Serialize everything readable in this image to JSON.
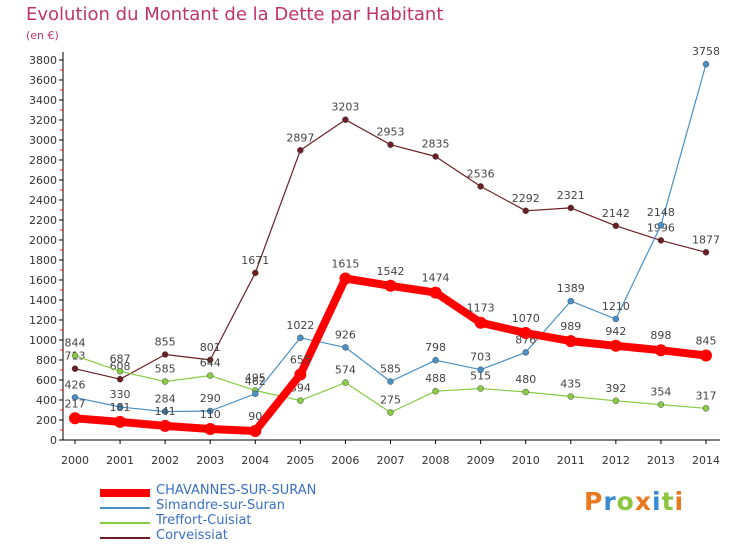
{
  "chart_data": {
    "type": "line",
    "title": "Evolution du Montant de la Dette par Habitant",
    "subtitle": "(en €)",
    "x": [
      "2000",
      "2001",
      "2002",
      "2003",
      "2004",
      "2005",
      "2006",
      "2007",
      "2008",
      "2009",
      "2010",
      "2011",
      "2012",
      "2013",
      "2014"
    ],
    "ylim": [
      0,
      3800
    ],
    "yticks": [
      0,
      200,
      400,
      600,
      800,
      1000,
      1200,
      1400,
      1600,
      1800,
      2000,
      2200,
      2400,
      2600,
      2800,
      3000,
      3200,
      3400,
      3600,
      3800
    ],
    "grid": false,
    "legend_position": "bottom-left",
    "series": [
      {
        "name": "CHAVANNES-SUR-SURAN",
        "color": "#ff0000",
        "values": [
          217,
          181,
          141,
          110,
          90,
          655,
          1615,
          1542,
          1474,
          1173,
          1070,
          989,
          942,
          898,
          845
        ]
      },
      {
        "name": "Simandre-sur-Suran",
        "color": "#4a90c8",
        "values": [
          426,
          330,
          284,
          290,
          462,
          1022,
          926,
          585,
          798,
          703,
          876,
          1389,
          1210,
          2148,
          3758
        ]
      },
      {
        "name": "Treffort-Cuisiat",
        "color": "#88cc44",
        "values": [
          844,
          687,
          585,
          644,
          495,
          394,
          574,
          275,
          488,
          515,
          480,
          435,
          392,
          354,
          317
        ]
      },
      {
        "name": "Corveissiat",
        "color": "#6b1f24",
        "values": [
          713,
          608,
          855,
          801,
          1671,
          2897,
          3203,
          2953,
          2835,
          2536,
          2292,
          2321,
          2142,
          1996,
          1877
        ]
      }
    ]
  },
  "logo": {
    "text": "Proxiti",
    "colors": [
      "#e8791f",
      "#3a8cd0",
      "#8cc63f",
      "#e8791f",
      "#3a8cd0",
      "#8cc63f",
      "#e8791f"
    ]
  }
}
